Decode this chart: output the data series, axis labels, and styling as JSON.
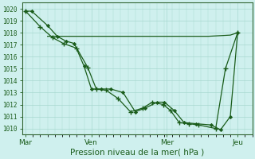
{
  "xlabel": "Pression niveau de la mer( hPa )",
  "bg_color": "#cff0ee",
  "plot_bg_color": "#cff0ee",
  "grid_color": "#a8d8d0",
  "line_color": "#1a5c1a",
  "spine_color": "#336633",
  "ylim": [
    1009.5,
    1020.5
  ],
  "xlim": [
    -0.15,
    9.3
  ],
  "xtick_labels": [
    "Mar",
    "Ven",
    "Mer",
    "Jeu"
  ],
  "xtick_positions": [
    0.0,
    2.7,
    5.8,
    8.7
  ],
  "ytick_values": [
    1010,
    1011,
    1012,
    1013,
    1014,
    1015,
    1016,
    1017,
    1018,
    1019,
    1020
  ],
  "line1_x": [
    0.0,
    0.25,
    0.9,
    1.3,
    1.65,
    2.0,
    2.4,
    2.7,
    3.1,
    3.5,
    4.0,
    4.5,
    4.9,
    5.4,
    5.7,
    6.1,
    6.5,
    7.0,
    7.6,
    8.0,
    8.4,
    8.7
  ],
  "line1_y": [
    1019.8,
    1019.8,
    1018.6,
    1017.7,
    1017.3,
    1017.1,
    1015.2,
    1013.3,
    1013.3,
    1013.3,
    1013.0,
    1011.4,
    1011.7,
    1012.2,
    1012.2,
    1011.5,
    1010.5,
    1010.4,
    1010.3,
    1009.9,
    1011.0,
    1018.0
  ],
  "line2_x": [
    0.0,
    0.6,
    1.1,
    1.55,
    2.1,
    2.55,
    2.9,
    3.3,
    3.8,
    4.3,
    4.8,
    5.2,
    5.65,
    5.95,
    6.3,
    6.7,
    7.1,
    7.8,
    8.2,
    8.7
  ],
  "line2_y": [
    1019.8,
    1018.5,
    1017.6,
    1017.1,
    1016.7,
    1015.1,
    1013.3,
    1013.2,
    1012.5,
    1011.4,
    1011.7,
    1012.2,
    1012.0,
    1011.5,
    1010.5,
    1010.4,
    1010.3,
    1010.0,
    1015.0,
    1018.0
  ],
  "line3_x": [
    0.9,
    1.3,
    2.0,
    2.7,
    3.5,
    4.5,
    5.5,
    6.5,
    7.5,
    8.4,
    8.7
  ],
  "line3_y": [
    1017.7,
    1017.7,
    1017.7,
    1017.7,
    1017.7,
    1017.7,
    1017.7,
    1017.7,
    1017.7,
    1017.8,
    1018.0
  ],
  "ylabel_fontsize": 5.5,
  "xlabel_fontsize": 7.5,
  "xtick_fontsize": 6.5
}
